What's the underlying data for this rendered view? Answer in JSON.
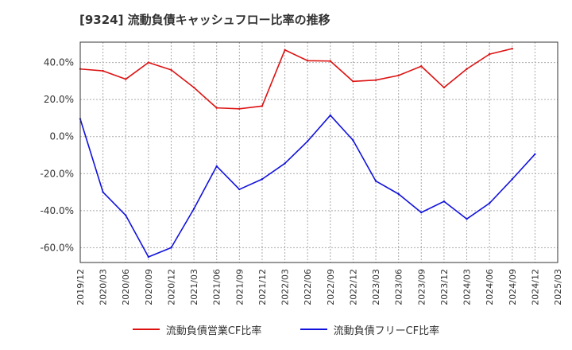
{
  "chart_data": {
    "type": "line",
    "title": "[9324]  流動負債キャッシュフロー比率の推移",
    "x": [
      "2019/12",
      "2020/03",
      "2020/06",
      "2020/09",
      "2020/12",
      "2021/03",
      "2021/06",
      "2021/09",
      "2021/12",
      "2022/03",
      "2022/06",
      "2022/09",
      "2022/12",
      "2023/03",
      "2023/06",
      "2023/09",
      "2023/12",
      "2024/03",
      "2024/06",
      "2024/09",
      "2024/12"
    ],
    "x_ticks": [
      "2019/12",
      "2020/03",
      "2020/06",
      "2020/09",
      "2020/12",
      "2021/03",
      "2021/06",
      "2021/09",
      "2021/12",
      "2022/03",
      "2022/06",
      "2022/09",
      "2022/12",
      "2023/03",
      "2023/06",
      "2023/09",
      "2023/12",
      "2024/03",
      "2024/06",
      "2024/09",
      "2024/12",
      "2025/03"
    ],
    "y_ticks": [
      "40.0%",
      "20.0%",
      "0.0%",
      "-20.0%",
      "-40.0%",
      "-60.0%"
    ],
    "y_tick_values": [
      40,
      20,
      0,
      -20,
      -40,
      -60
    ],
    "ylim": [
      -68,
      51
    ],
    "grid": true,
    "legend_position": "bottom",
    "series": [
      {
        "name": "流動負債営業CF比率",
        "color": "#dd1111",
        "values": [
          36.5,
          35.5,
          31,
          40,
          36,
          26.5,
          15.5,
          15,
          16.5,
          46.8,
          41,
          40.8,
          29.8,
          30.5,
          33,
          38,
          26.5,
          36.5,
          44.5,
          47.5,
          null
        ]
      },
      {
        "name": "流動負債フリーCF比率",
        "color": "#1111dd",
        "values": [
          9.5,
          -30,
          -42.5,
          -65,
          -60,
          -39,
          -16,
          -28.5,
          -23,
          -14.5,
          -2.5,
          11.5,
          -2,
          -24,
          -31,
          -41,
          -35,
          -44.5,
          -36,
          -23,
          -9.5
        ]
      }
    ]
  }
}
